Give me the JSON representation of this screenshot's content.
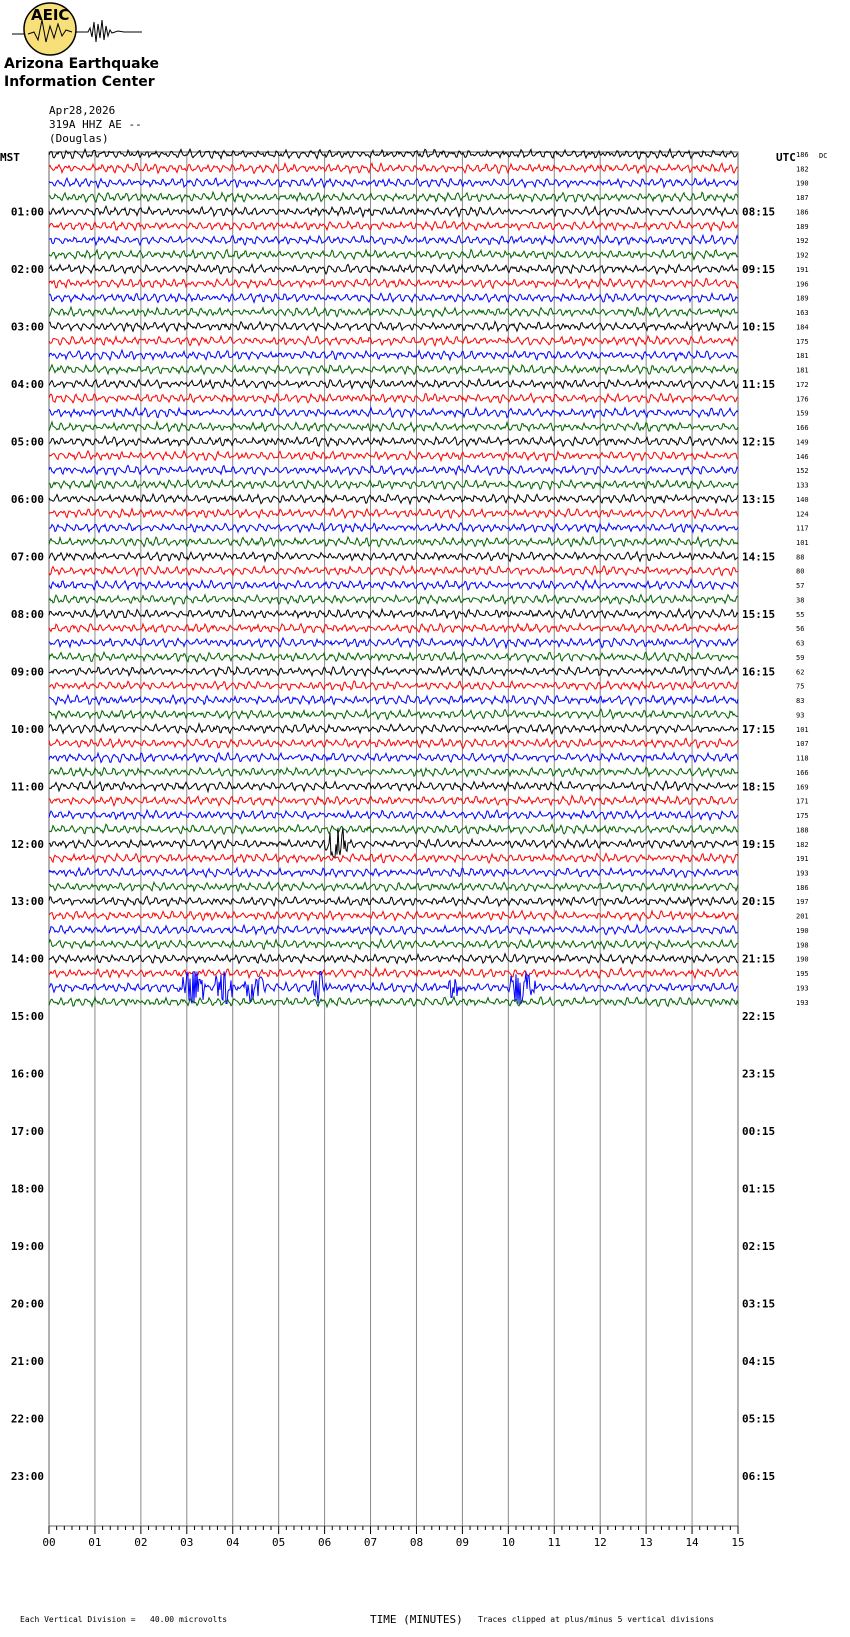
{
  "logo": {
    "abbr": "AEIC",
    "line1": "Arizona Earthquake",
    "line2": "Information Center"
  },
  "header": {
    "date": "Apr28,2026",
    "channel": "319A HHZ AE --",
    "location": "(Douglas)"
  },
  "left_axis_title": "MST",
  "right_axis_title": "UTC",
  "dc_title": "DC",
  "footer": {
    "left": "Each Vertical Division =   40.00 microvolts",
    "center": "TIME (MINUTES)",
    "right": "Traces clipped at plus/minus 5 vertical divisions"
  },
  "colors": {
    "trace_cycle": [
      "#000000",
      "#ff0000",
      "#0000ff",
      "#006400"
    ],
    "grid": "#888888",
    "logo_fill": "#f7e07a"
  },
  "chart_data": {
    "type": "line",
    "title": "",
    "xlabel": "TIME (MINUTES)",
    "ylabel": "",
    "x_ticks": [
      "00",
      "01",
      "02",
      "03",
      "04",
      "05",
      "06",
      "07",
      "08",
      "09",
      "10",
      "11",
      "12",
      "13",
      "14",
      "15"
    ],
    "xlim": [
      0,
      15
    ],
    "traces_per_hour": 4,
    "minutes_per_trace": 15,
    "mst_labels": [
      "01:00",
      "02:00",
      "03:00",
      "04:00",
      "05:00",
      "06:00",
      "07:00",
      "08:00",
      "09:00",
      "10:00",
      "11:00",
      "12:00",
      "13:00",
      "14:00",
      "15:00",
      "16:00",
      "17:00",
      "18:00",
      "19:00",
      "20:00",
      "21:00",
      "22:00",
      "23:00"
    ],
    "utc_labels": [
      "08:15",
      "09:15",
      "10:15",
      "11:15",
      "12:15",
      "13:15",
      "14:15",
      "15:15",
      "16:15",
      "17:15",
      "18:15",
      "19:15",
      "20:15",
      "21:15",
      "22:15",
      "23:15",
      "00:15",
      "01:15",
      "02:15",
      "03:15",
      "04:15",
      "05:15",
      "06:15"
    ],
    "dc_offsets": [
      186,
      182,
      190,
      187,
      186,
      189,
      192,
      192,
      191,
      196,
      189,
      163,
      184,
      175,
      181,
      181,
      172,
      176,
      159,
      166,
      149,
      146,
      152,
      133,
      140,
      124,
      117,
      101,
      88,
      80,
      57,
      38,
      55,
      56,
      63,
      59,
      62,
      75,
      83,
      93,
      101,
      107,
      118,
      166,
      169,
      171,
      175,
      188,
      182,
      191,
      193,
      186,
      197,
      201,
      190,
      198,
      190,
      195,
      193,
      193
    ],
    "events": [
      {
        "trace": 48,
        "start_min": 6.0,
        "end_min": 6.5,
        "amplitude": 2.5
      },
      {
        "trace": 58,
        "start_min": 2.8,
        "end_min": 3.4,
        "amplitude": 2.5
      },
      {
        "trace": 58,
        "start_min": 3.6,
        "end_min": 4.0,
        "amplitude": 3.0
      },
      {
        "trace": 58,
        "start_min": 4.2,
        "end_min": 4.7,
        "amplitude": 2.0
      },
      {
        "trace": 58,
        "start_min": 5.7,
        "end_min": 6.1,
        "amplitude": 1.8
      },
      {
        "trace": 58,
        "start_min": 8.6,
        "end_min": 9.0,
        "amplitude": 1.3
      },
      {
        "trace": 58,
        "start_min": 10.0,
        "end_min": 10.6,
        "amplitude": 2.8
      }
    ]
  }
}
